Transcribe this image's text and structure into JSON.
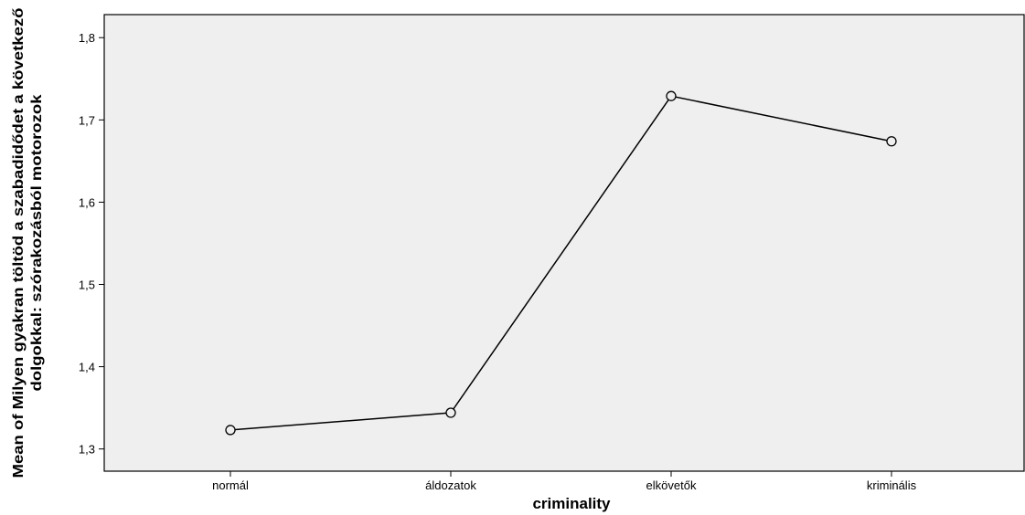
{
  "chart_data": {
    "type": "line",
    "xlabel": "criminality",
    "ylabel_lines": [
      "Mean of Milyen gyakran töltöd a szabadidődet a következő",
      "dolgokkal: szórakozásból motorozok"
    ],
    "categories": [
      "normál",
      "áldozatok",
      "elkövetők",
      "kriminális"
    ],
    "series": [
      {
        "values": [
          1.323,
          1.344,
          1.729,
          1.674
        ]
      }
    ],
    "ylim": [
      1.273,
      1.828
    ],
    "yticks": [
      1.3,
      1.4,
      1.5,
      1.6,
      1.7,
      1.8
    ],
    "ytick_labels": [
      "1,3",
      "1,4",
      "1,5",
      "1,6",
      "1,7",
      "1,8"
    ],
    "grid": false,
    "colors": {
      "plot_background": "#efefef",
      "line": "#000000",
      "marker_fill": "#efefef"
    }
  }
}
